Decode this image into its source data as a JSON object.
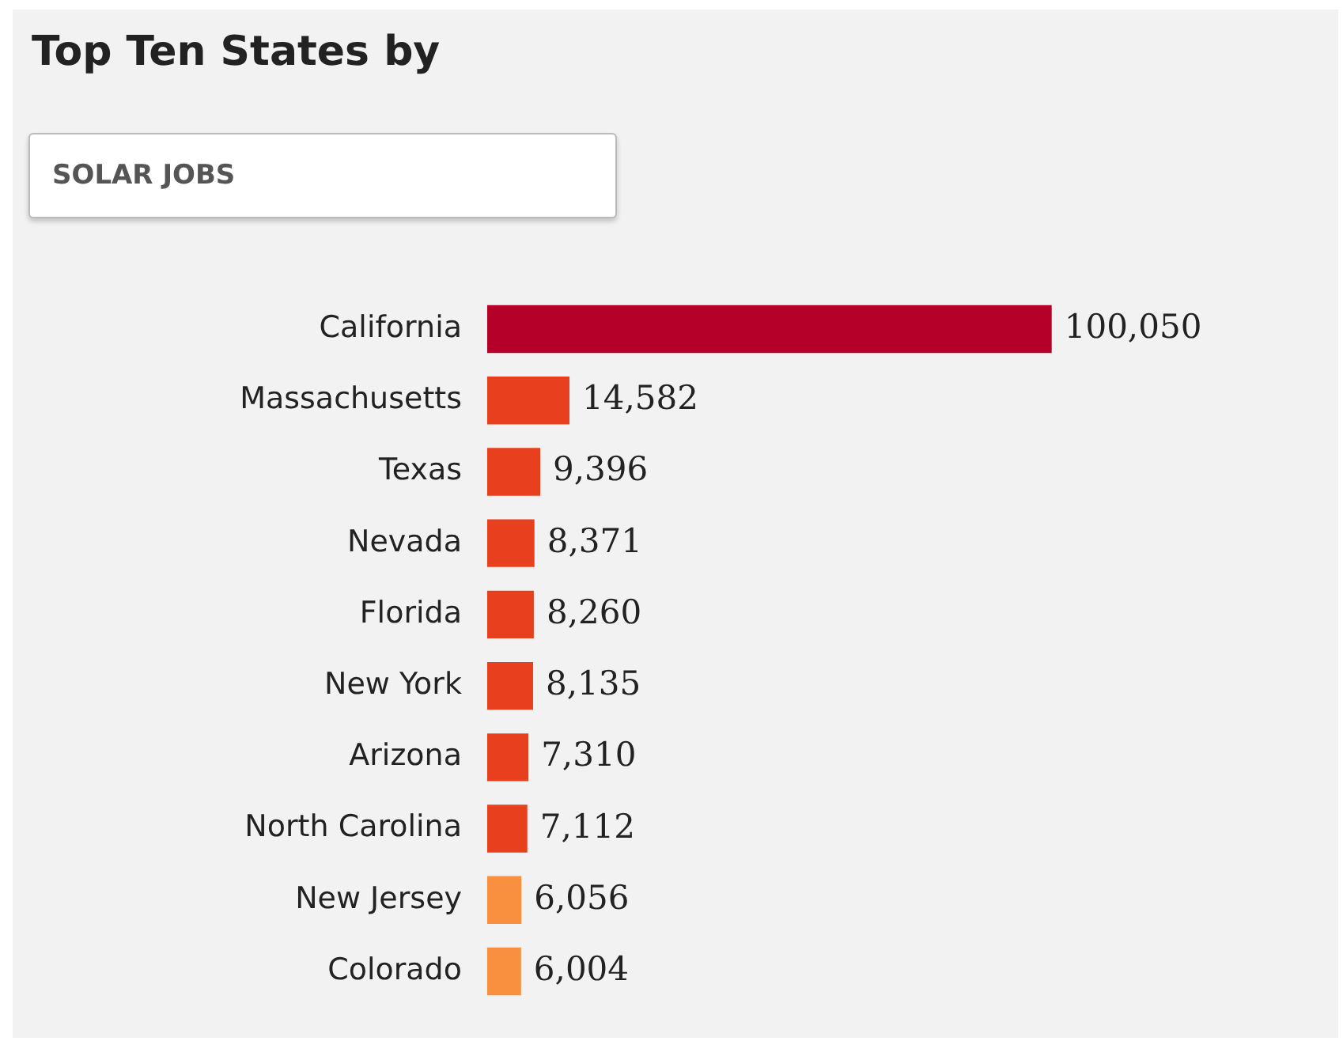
{
  "chart_data": {
    "type": "bar",
    "orientation": "horizontal",
    "title": "Top Ten States by",
    "subtitle": "SOLAR JOBS",
    "categories": [
      "California",
      "Massachusetts",
      "Texas",
      "Nevada",
      "Florida",
      "New York",
      "Arizona",
      "North Carolina",
      "New Jersey",
      "Colorado"
    ],
    "values": [
      100050,
      14582,
      9396,
      8371,
      8260,
      8135,
      7310,
      7112,
      6056,
      6004
    ],
    "colors": [
      "#b5002a",
      "#e8401f",
      "#e8401f",
      "#e8401f",
      "#e8401f",
      "#e8401f",
      "#e8401f",
      "#e8401f",
      "#f99040",
      "#f99040"
    ],
    "value_labels": [
      "100,050",
      "14,582",
      "9,396",
      "8,371",
      "8,260",
      "8,135",
      "7,310",
      "7,112",
      "6,056",
      "6,004"
    ],
    "legend": false,
    "tick_labels": "y"
  }
}
